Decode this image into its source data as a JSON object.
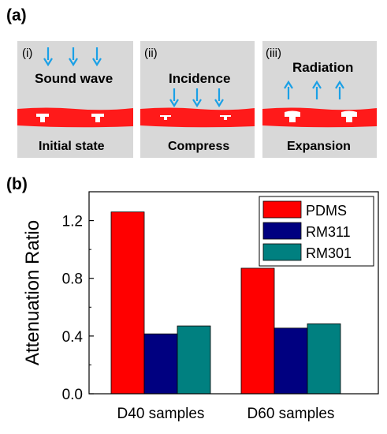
{
  "panel_a": {
    "label": "(a)",
    "diagrams": [
      {
        "roman": "(i)",
        "text1": "Sound wave",
        "text2": "Initial state",
        "arrow_dir": "down",
        "pillar": "normal"
      },
      {
        "roman": "(ii)",
        "text1": "Incidence",
        "text2": "Compress",
        "arrow_dir": "down",
        "pillar": "compressed"
      },
      {
        "roman": "(iii)",
        "text1": "Radiation",
        "text2": "Expansion",
        "arrow_dir": "up",
        "pillar": "expanded"
      }
    ],
    "colors": {
      "background": "#d8d8d8",
      "film": "#ff1a1a",
      "arrow": "#1aa0e6",
      "pillar": "#ffffff"
    }
  },
  "panel_b": {
    "label": "(b)"
  },
  "chart_data": {
    "type": "bar",
    "categories": [
      "D40 samples",
      "D60 samples"
    ],
    "series": [
      {
        "name": "PDMS",
        "color": "#ff0000",
        "values": [
          1.26,
          0.87
        ]
      },
      {
        "name": "RM311",
        "color": "#000080",
        "values": [
          0.415,
          0.455
        ]
      },
      {
        "name": "RM301",
        "color": "#008080",
        "values": [
          0.47,
          0.485
        ]
      }
    ],
    "ylabel": "Attenuation Ratio",
    "xlabel": "",
    "ylim": [
      0,
      1.4
    ],
    "yticks": [
      "0.0",
      "0.4",
      "0.8",
      "1.2"
    ],
    "ytick_values": [
      0,
      0.4,
      0.8,
      1.2
    ],
    "legend_position": "top-right",
    "grid": false
  }
}
